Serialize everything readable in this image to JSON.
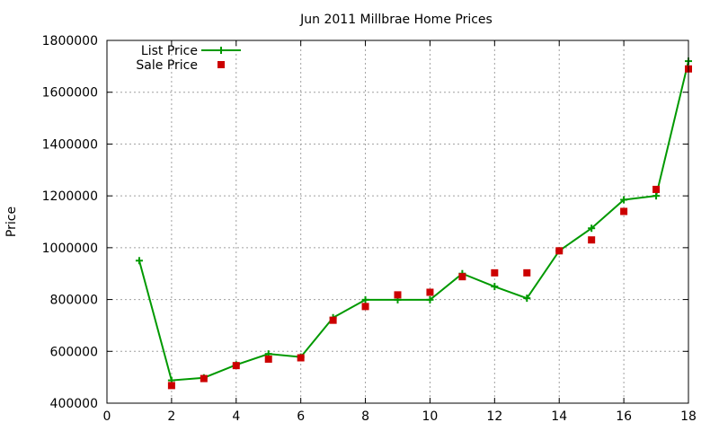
{
  "chart_data": {
    "type": "line",
    "title": "Jun 2011 Millbrae Home Prices",
    "xlabel": "",
    "ylabel": "Price",
    "xlim": [
      0,
      18
    ],
    "ylim": [
      400000,
      1800000
    ],
    "x_ticks": [
      0,
      2,
      4,
      6,
      8,
      10,
      12,
      14,
      16,
      18
    ],
    "y_ticks": [
      400000,
      600000,
      800000,
      1000000,
      1200000,
      1400000,
      1600000,
      1800000
    ],
    "x_tick_labels": [
      "0",
      "2",
      "4",
      "6",
      "8",
      "10",
      "12",
      "14",
      "16",
      "18"
    ],
    "y_tick_labels": [
      "400000",
      "600000",
      "800000",
      "1000000",
      "1200000",
      "1400000",
      "1600000",
      "1800000"
    ],
    "grid": true,
    "legend_position": "top-left",
    "series": [
      {
        "name": "List Price",
        "style": "line+cross",
        "color": "#009900",
        "x": [
          1,
          2,
          3,
          4,
          5,
          6,
          7,
          8,
          9,
          10,
          11,
          12,
          13,
          14,
          15,
          16,
          17,
          18
        ],
        "values": [
          950000,
          488000,
          498000,
          548000,
          590000,
          578000,
          730000,
          799000,
          799000,
          799000,
          900000,
          850000,
          805000,
          988000,
          1075000,
          1185000,
          1200000,
          1720000
        ]
      },
      {
        "name": "Sale Price",
        "style": "square",
        "color": "#cc0000",
        "x": [
          2,
          3,
          4,
          5,
          6,
          7,
          8,
          9,
          10,
          11,
          12,
          13,
          14,
          15,
          16,
          17,
          18
        ],
        "values": [
          468000,
          495000,
          545000,
          570000,
          575000,
          720000,
          773000,
          818000,
          828000,
          888000,
          903000,
          903000,
          988000,
          1030000,
          1140000,
          1225000,
          1690000
        ]
      }
    ]
  }
}
